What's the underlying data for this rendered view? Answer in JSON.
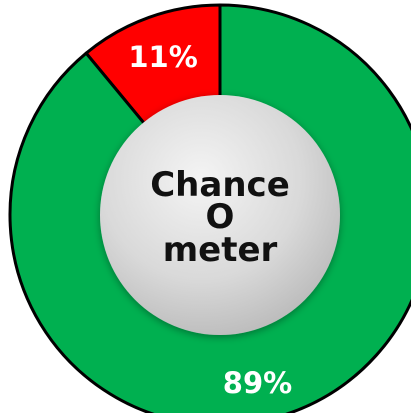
{
  "chart_data": {
    "type": "pie",
    "variant": "donut",
    "center_label_lines": [
      "Chance",
      "O",
      "meter"
    ],
    "slices": [
      {
        "label": "11%",
        "value": 11,
        "color": "#ff0000"
      },
      {
        "label": "89%",
        "value": 89,
        "color": "#00b050"
      }
    ],
    "colors": {
      "outline": "#000000",
      "hub": "#d9d9d9"
    }
  }
}
